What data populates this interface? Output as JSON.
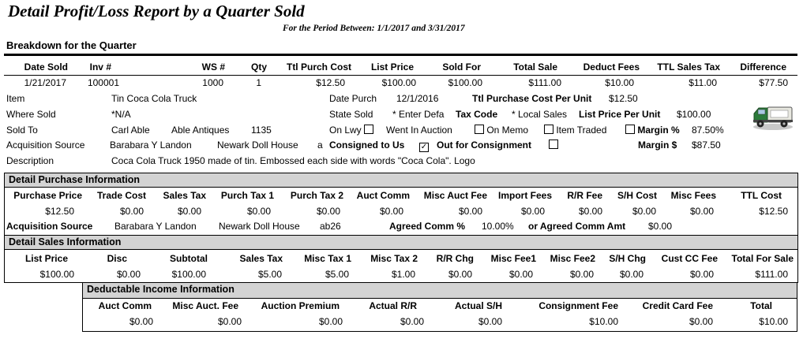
{
  "report": {
    "title": "Detail Profit/Loss Report by a Quarter Sold",
    "period": "For the Period Between: 1/1/2017 and 3/31/2017",
    "breakdown": "Breakdown for the Quarter"
  },
  "main_headers": [
    "Date Sold",
    "Inv #",
    "WS #",
    "Qty",
    "Ttl Purch Cost",
    "List Price",
    "Sold For",
    "Total Sale",
    "Deduct  Fees",
    "TTL Sales Tax",
    "Difference"
  ],
  "main_row": [
    "1/21/2017",
    "100001",
    "1000",
    "1",
    "$12.50",
    "$100.00",
    "$100.00",
    "$111.00",
    "$10.00",
    "$11.00",
    "$77.50"
  ],
  "item": {
    "item_label": "Item",
    "item_value": "Tin Coca Cola Truck",
    "where_label": "Where Sold",
    "where_value": "*N/A",
    "soldto_label": "Sold To",
    "soldto_name": "Carl  Able",
    "soldto_company": "Able Antiques",
    "soldto_num": "1135",
    "acq_label": "Acquisition Source",
    "acq_name": "Barabara Y Landon",
    "acq_company": "Newark Doll House",
    "acq_extra": "a",
    "desc_label": "Description",
    "desc_value": "Coca Cola Truck 1950 made of tin.  Embossed each side with words \"Coca Cola\". Logo",
    "date_purch_label": "Date Purch",
    "date_purch_value": "12/1/2016",
    "tpc_label": "Ttl Purchase Cost Per Unit",
    "tpc_value": "$12.50",
    "state_label": "State Sold",
    "state_value": "* Enter Defa",
    "tax_label": "Tax Code",
    "tax_value": "* Local Sales",
    "lp_label": "List Price Per Unit",
    "lp_value": "$100.00",
    "onlwy_label": "On Lwy",
    "onlwy_checked": false,
    "went_label": "Went In Auction",
    "went_checked": false,
    "memo_label": "On Memo",
    "memo_checked": false,
    "traded_label": "Item Traded",
    "traded_checked": false,
    "margin_pct_label": "Margin %",
    "margin_pct_value": "87.50%",
    "consigned_label": "Consigned to Us",
    "consigned_checked": true,
    "out_label": "Out for Consignment",
    "out_checked": false,
    "margin_amt_label": "Margin $",
    "margin_amt_value": "$87.50"
  },
  "purchase": {
    "title": "Detail Purchase Information",
    "headers": [
      "Purchase Price",
      "Trade Cost",
      "Sales Tax",
      "Purch Tax 1",
      "Purch Tax 2",
      "Auct Comm",
      "Misc Auct Fee",
      "Import Fees",
      "R/R Fee",
      "S/H Cost",
      "Misc Fees",
      "TTL Cost"
    ],
    "values": [
      "$12.50",
      "$0.00",
      "$0.00",
      "$0.00",
      "$0.00",
      "$0.00",
      "$0.00",
      "$0.00",
      "$0.00",
      "$0.00",
      "$0.00",
      "$12.50"
    ],
    "acq_label": "Acquisition Source",
    "acq_name": "Barabara Y Landon",
    "acq_company": "Newark Doll House",
    "acq_code": "ab26",
    "agreed_pct_label": "Agreed Comm %",
    "agreed_pct_value": "10.00%",
    "agreed_amt_label": "or Agreed Comm Amt",
    "agreed_amt_value": "$0.00"
  },
  "sales": {
    "title": "Detail Sales Information",
    "headers": [
      "List Price",
      "Disc",
      "Subtotal",
      "Sales Tax",
      "Misc Tax 1",
      "Misc Tax 2",
      "R/R Chg",
      "Misc Fee1",
      "Misc Fee2",
      "S/H Chg",
      "Cust CC Fee",
      "Total For Sale"
    ],
    "values": [
      "$100.00",
      "$0.00",
      "$100.00",
      "$5.00",
      "$5.00",
      "$1.00",
      "$0.00",
      "$0.00",
      "$0.00",
      "$0.00",
      "$0.00",
      "$111.00"
    ]
  },
  "deductable": {
    "title": "Deductable Income Information",
    "headers": [
      "Auct Comm",
      "Misc Auct. Fee",
      "Auction Premium",
      "Actual R/R",
      "Actual S/H",
      "Consignment Fee",
      "Credit Card Fee",
      "Total"
    ],
    "values": [
      "$0.00",
      "$0.00",
      "$0.00",
      "$0.00",
      "$0.00",
      "$10.00",
      "$0.00",
      "$10.00"
    ]
  },
  "icons": {
    "thumbnail": "truck-photo-icon",
    "checkbox": "checkbox-icon"
  }
}
